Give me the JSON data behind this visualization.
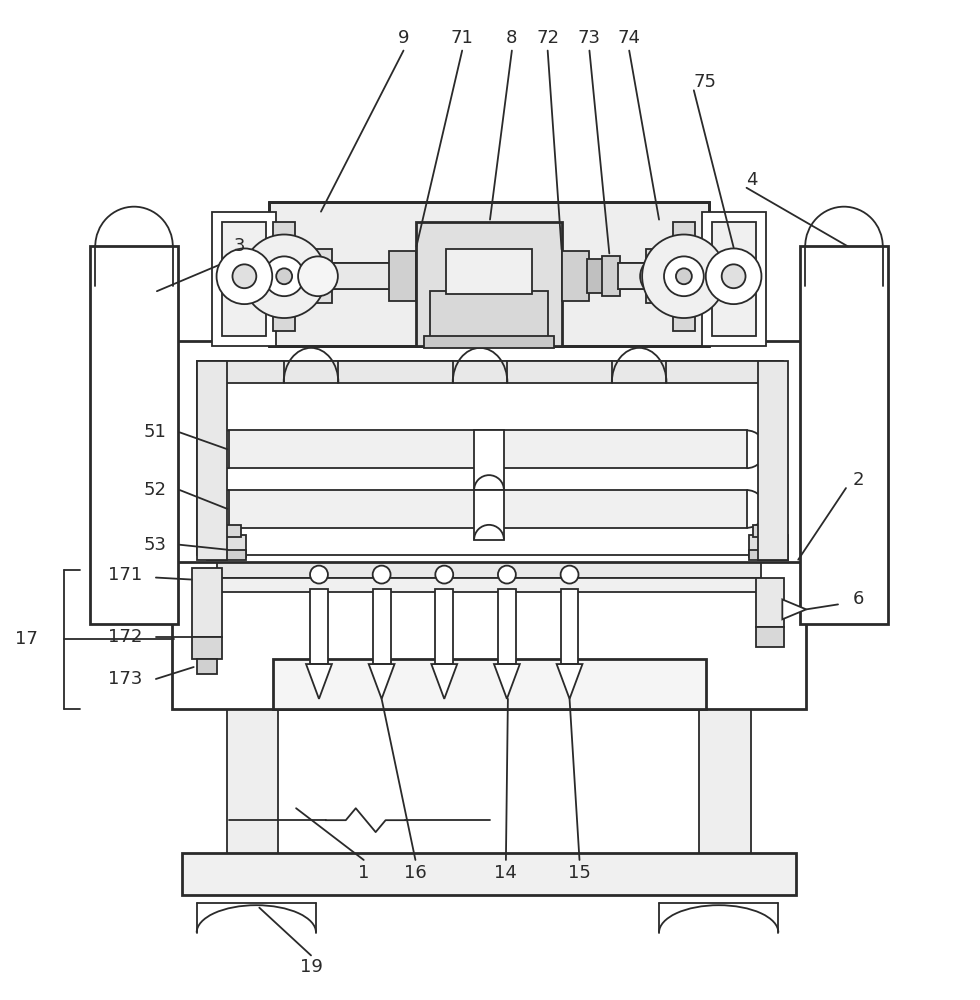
{
  "bg": "#ffffff",
  "lc": "#2a2a2a",
  "lw": 1.3,
  "lw_thick": 2.0,
  "fs": 13
}
